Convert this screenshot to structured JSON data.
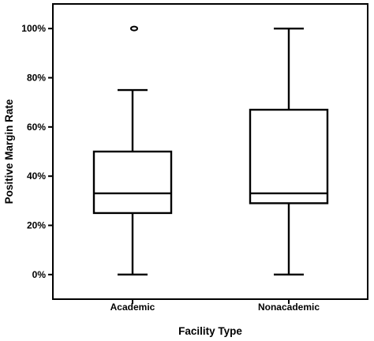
{
  "chart_data": {
    "type": "box",
    "xlabel": "Facility Type",
    "ylabel": "Positive Margin Rate",
    "ylim": [
      -0.1,
      1.1
    ],
    "yticks": [
      0,
      0.2,
      0.4,
      0.6,
      0.8,
      1.0
    ],
    "ytick_labels": [
      "0%",
      "20%",
      "40%",
      "60%",
      "80%",
      "100%"
    ],
    "categories": [
      "Academic",
      "Nonacademic"
    ],
    "boxes": [
      {
        "category": "Academic",
        "whisker_low": 0.0,
        "q1": 0.25,
        "median": 0.33,
        "q3": 0.5,
        "whisker_high": 0.75,
        "outliers": [
          1.0
        ]
      },
      {
        "category": "Nonacademic",
        "whisker_low": 0.0,
        "q1": 0.29,
        "median": 0.33,
        "q3": 0.67,
        "whisker_high": 1.0,
        "outliers": []
      }
    ],
    "grid": false,
    "legend": "none"
  }
}
